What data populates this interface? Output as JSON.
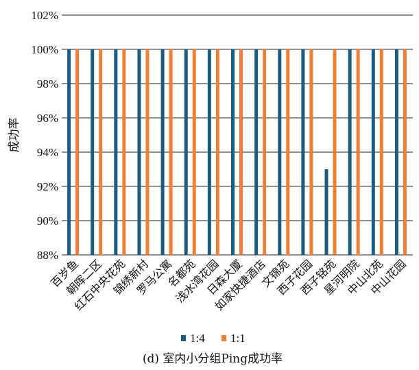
{
  "chart_data": {
    "type": "bar",
    "caption": "(d) 室内小分组Ping成功率",
    "ylabel": "成功率",
    "ylim": [
      88,
      102
    ],
    "yticks": [
      "88%",
      "90%",
      "92%",
      "94%",
      "96%",
      "98%",
      "100%",
      "102%"
    ],
    "yticks_values": [
      88,
      90,
      92,
      94,
      96,
      98,
      100,
      102
    ],
    "grid": true,
    "legend_position": "bottom",
    "categories": [
      "百岁鱼",
      "朝晖二区",
      "红石中央花苑",
      "锦绣新村",
      "罗马公寓",
      "名都苑",
      "浅水湾花园",
      "日森大厦",
      "如家快捷酒店",
      "文锦苑",
      "西子花园",
      "西子铭苑",
      "星河明院",
      "中山北苑",
      "中山花园"
    ],
    "series": [
      {
        "name": "1:4",
        "color": "#1b5d80",
        "values": [
          100,
          100,
          100,
          100,
          100,
          100,
          100,
          100,
          100,
          100,
          100,
          93,
          100,
          100,
          100
        ]
      },
      {
        "name": "1:1",
        "color": "#f07f33",
        "values": [
          100,
          100,
          100,
          100,
          100,
          100,
          100,
          100,
          100,
          100,
          100,
          100,
          100,
          100,
          100
        ]
      }
    ]
  }
}
